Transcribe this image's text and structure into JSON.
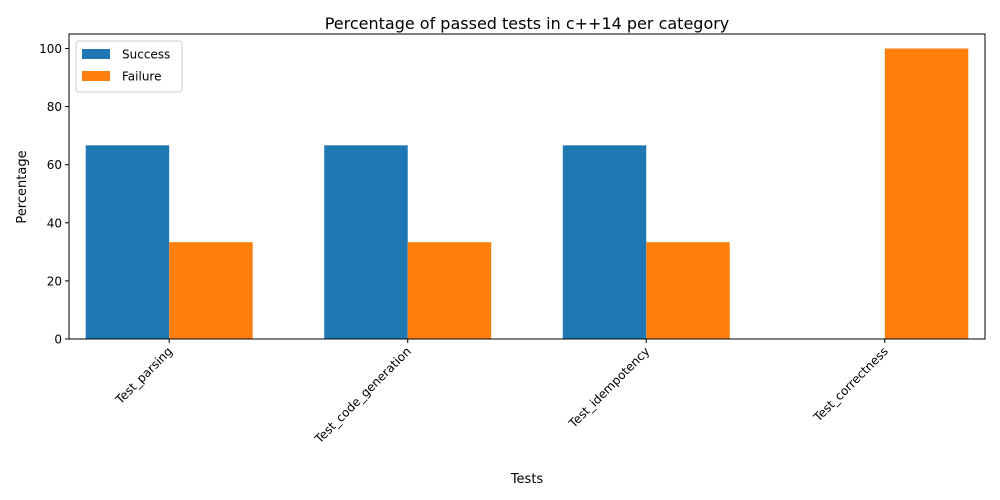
{
  "chart_data": {
    "type": "bar",
    "title": "Percentage of passed tests in c++14 per category",
    "xlabel": "Tests",
    "ylabel": "Percentage",
    "categories": [
      "Test_parsing",
      "Test_code_generation",
      "Test_idempotency",
      "Test_correctness"
    ],
    "series": [
      {
        "name": "Success",
        "color": "#1f77b4",
        "values": [
          66.67,
          66.67,
          66.67,
          0
        ]
      },
      {
        "name": "Failure",
        "color": "#ff7f0e",
        "values": [
          33.33,
          33.33,
          33.33,
          100
        ]
      }
    ],
    "ylim": [
      0,
      105
    ],
    "yticks": [
      0,
      20,
      40,
      60,
      80,
      100
    ],
    "grid": false,
    "legend_position": "top-left"
  }
}
